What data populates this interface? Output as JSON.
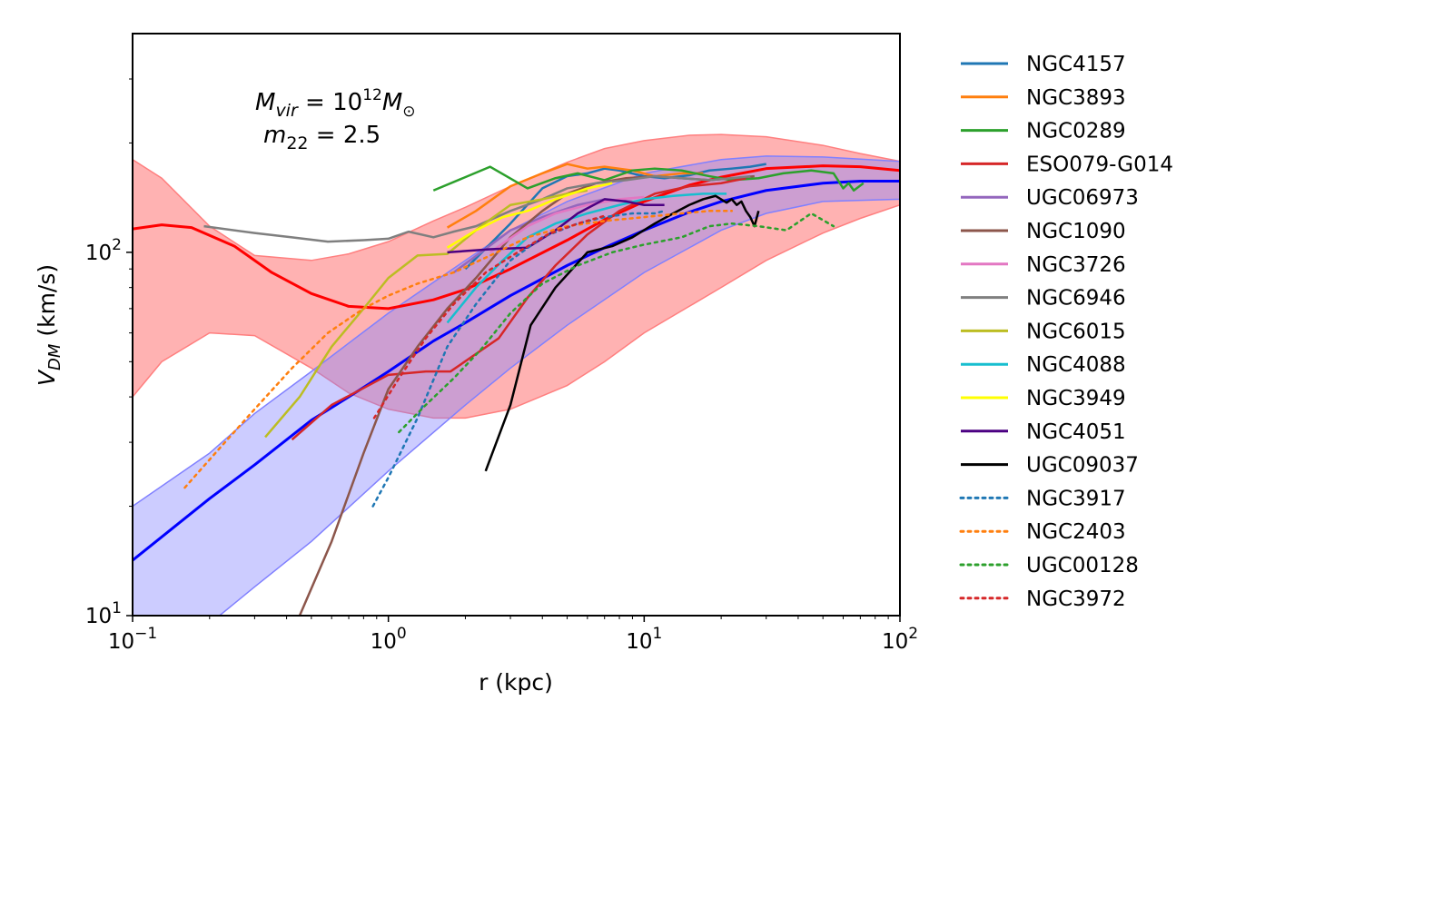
{
  "chart_data": {
    "type": "line",
    "xscale": "log",
    "yscale": "log",
    "xlim": [
      0.1,
      100
    ],
    "ylim": [
      10,
      400
    ],
    "xlabel": "r (kpc)",
    "ylabel_main": "V",
    "ylabel_sub": "DM",
    "ylabel_unit": " (km/s)",
    "annotation_line1": "M_vir = 10^12 M_sun",
    "annotation_line2": "m_22 = 2.5",
    "legend_position": "outside-right",
    "x_ticks": [
      {
        "value": 0.1,
        "base": "10",
        "exp": "−1"
      },
      {
        "value": 1,
        "base": "10",
        "exp": "0"
      },
      {
        "value": 10,
        "base": "10",
        "exp": "1"
      },
      {
        "value": 100,
        "base": "10",
        "exp": "2"
      }
    ],
    "y_ticks": [
      {
        "value": 10,
        "base": "10",
        "exp": "1"
      },
      {
        "value": 100,
        "base": "10",
        "exp": "2"
      }
    ],
    "bands": [
      {
        "name": "",
        "color": "#ff7f7f",
        "opacity": 0.6,
        "x": [
          0.1,
          0.13,
          0.2,
          0.3,
          0.5,
          0.7,
          1.0,
          1.5,
          2.0,
          3.0,
          5.0,
          7.0,
          10,
          15,
          20,
          30,
          50,
          70,
          100
        ],
        "upper": [
          180,
          160,
          118,
          98,
          95,
          99,
          107,
          122,
          133,
          152,
          177,
          193,
          203,
          210,
          211,
          208,
          197,
          187,
          178
        ],
        "lower": [
          40,
          50,
          60,
          59,
          48,
          41,
          37,
          35,
          35,
          37,
          43,
          50,
          60,
          71,
          80,
          95,
          113,
          124,
          135
        ]
      },
      {
        "name": "",
        "color": "#8080ff",
        "opacity": 0.4,
        "x": [
          0.1,
          0.2,
          0.3,
          0.5,
          1.0,
          2.0,
          3.0,
          5.0,
          10,
          20,
          30,
          50,
          100
        ],
        "upper": [
          20,
          28,
          36,
          47,
          68,
          95,
          115,
          138,
          165,
          180,
          184,
          183,
          178
        ],
        "lower": [
          6.5,
          9.5,
          12,
          16,
          25,
          38,
          48,
          63,
          88,
          115,
          128,
          138,
          140
        ]
      }
    ],
    "model_curves": [
      {
        "name": "",
        "color": "#ff0000",
        "width": 3,
        "x": [
          0.1,
          0.13,
          0.17,
          0.25,
          0.35,
          0.5,
          0.7,
          1.0,
          1.5,
          2.0,
          3.0,
          5.0,
          7.0,
          10,
          15,
          20,
          30,
          50,
          70,
          100
        ],
        "y": [
          116,
          119,
          117,
          104,
          88,
          77,
          71,
          70,
          74,
          79,
          90,
          108,
          123,
          138,
          153,
          161,
          170,
          173,
          172,
          168
        ]
      },
      {
        "name": "",
        "color": "#0000ff",
        "width": 3,
        "x": [
          0.1,
          0.2,
          0.3,
          0.5,
          0.7,
          1.0,
          1.5,
          2.0,
          3.0,
          5.0,
          7.0,
          10,
          15,
          20,
          30,
          50,
          70,
          100
        ],
        "y": [
          14.2,
          21,
          26,
          34.5,
          40,
          47,
          57,
          64,
          76,
          92,
          103,
          115,
          129,
          138,
          148,
          155,
          157,
          157
        ]
      }
    ],
    "series": [
      {
        "name": "NGC4157",
        "color": "#1f77b4",
        "style": "solid",
        "x": [
          2.0,
          3.0,
          4.0,
          5.0,
          6.0,
          7.0,
          8.0,
          10,
          12,
          15,
          18,
          22,
          26,
          30
        ],
        "y": [
          90,
          120,
          150,
          162,
          165,
          170,
          168,
          162,
          160,
          163,
          168,
          170,
          172,
          175
        ]
      },
      {
        "name": "NGC3893",
        "color": "#ff7f0e",
        "style": "solid",
        "x": [
          1.7,
          2.2,
          3.0,
          4.0,
          5.0,
          6.0,
          7.0,
          9.0,
          11,
          14,
          17
        ],
        "y": [
          117,
          130,
          152,
          165,
          175,
          170,
          172,
          168,
          162,
          165,
          165
        ]
      },
      {
        "name": "NGC0289",
        "color": "#2ca02c",
        "style": "solid",
        "x": [
          1.5,
          2.5,
          3.5,
          4.5,
          5.5,
          7.0,
          9.0,
          11,
          14,
          18,
          22,
          28,
          35,
          45,
          55,
          60,
          63,
          66,
          72
        ],
        "y": [
          148,
          172,
          150,
          160,
          165,
          158,
          168,
          170,
          168,
          162,
          158,
          160,
          165,
          168,
          165,
          150,
          155,
          148,
          155
        ]
      },
      {
        "name": "ESO079-G014",
        "color": "#d62728",
        "style": "solid",
        "x": [
          0.42,
          0.6,
          1.0,
          1.4,
          1.75,
          2.7,
          3.5,
          4.5,
          6.0,
          8.0,
          11,
          15,
          20,
          25
        ],
        "y": [
          30.5,
          38,
          46,
          47,
          47,
          58,
          75,
          92,
          112,
          130,
          145,
          152,
          155,
          160
        ]
      },
      {
        "name": "UGC06973",
        "color": "#9467bd",
        "style": "solid",
        "x": [
          1.8,
          2.3,
          3.0,
          4.0,
          5.5,
          7.0,
          9.0
        ],
        "y": [
          88,
          100,
          115,
          125,
          135,
          140,
          138
        ]
      },
      {
        "name": "NGC1090",
        "color": "#8c564b",
        "style": "solid",
        "x": [
          0.45,
          0.6,
          0.8,
          1.0,
          1.3,
          1.7,
          2.2,
          3.0,
          4.0,
          5.0,
          6.5,
          8.5,
          11,
          14,
          18,
          22,
          27
        ],
        "y": [
          10,
          16,
          28,
          42,
          55,
          70,
          85,
          110,
          130,
          145,
          155,
          160,
          162,
          160,
          158,
          160,
          162
        ]
      },
      {
        "name": "NGC3726",
        "color": "#e377c2",
        "style": "solid",
        "x": [
          2.5,
          3.5,
          4.5,
          6.0,
          8.0,
          10
        ],
        "y": [
          100,
          118,
          128,
          135,
          140,
          142
        ]
      },
      {
        "name": "NGC6946",
        "color": "#7f7f7f",
        "style": "solid",
        "x": [
          0.19,
          0.3,
          0.42,
          0.58,
          0.8,
          1.0,
          1.2,
          1.5,
          1.8,
          2.2,
          3.0,
          4.0,
          5.0,
          6.5,
          8.5,
          11,
          14,
          18,
          22,
          26
        ],
        "y": [
          118,
          113,
          110,
          107,
          108,
          109,
          114,
          110,
          114,
          118,
          130,
          140,
          150,
          155,
          158,
          162,
          160,
          158,
          160,
          162
        ]
      },
      {
        "name": "NGC6015",
        "color": "#bcbd22",
        "style": "solid",
        "x": [
          0.33,
          0.45,
          0.6,
          0.8,
          1.0,
          1.3,
          1.7,
          2.3,
          3.0,
          4.0,
          5.0,
          6.0
        ],
        "y": [
          31,
          40,
          55,
          70,
          85,
          98,
          99,
          118,
          135,
          140,
          145,
          148
        ]
      },
      {
        "name": "NGC4088",
        "color": "#17becf",
        "style": "solid",
        "x": [
          1.7,
          2.2,
          2.8,
          3.5,
          4.5,
          6.0,
          8.0,
          10,
          13,
          17,
          21
        ],
        "y": [
          64,
          80,
          95,
          110,
          120,
          128,
          135,
          140,
          143,
          145,
          145
        ]
      },
      {
        "name": "NGC3949",
        "color": "#ffff00",
        "style": "solid",
        "x": [
          1.7,
          2.2,
          2.8,
          3.5,
          4.5,
          6.0,
          7.5
        ],
        "y": [
          103,
          115,
          125,
          130,
          140,
          150,
          155
        ]
      },
      {
        "name": "NGC4051",
        "color": "#4b0082",
        "style": "solid",
        "x": [
          1.7,
          2.5,
          3.5,
          4.5,
          5.5,
          7.0,
          8.5,
          10,
          12
        ],
        "y": [
          100,
          102,
          103,
          115,
          128,
          140,
          138,
          135,
          135
        ]
      },
      {
        "name": "UGC09037",
        "color": "#000000",
        "style": "solid",
        "x": [
          2.4,
          3.0,
          3.6,
          4.5,
          6.0,
          7.5,
          9.0,
          11,
          13,
          15,
          17,
          19,
          21,
          22,
          23,
          24,
          25,
          26,
          27,
          28
        ],
        "y": [
          25,
          38,
          63,
          80,
          100,
          104,
          110,
          120,
          128,
          135,
          140,
          143,
          137,
          140,
          135,
          138,
          130,
          125,
          118,
          130
        ]
      },
      {
        "name": "NGC3917",
        "color": "#1f77b4",
        "style": "dotted",
        "x": [
          0.87,
          1.0,
          1.3,
          1.7,
          2.2,
          3.0,
          4.0,
          5.5,
          7.0,
          9.0,
          11,
          12
        ],
        "y": [
          20,
          24,
          35,
          55,
          72,
          95,
          110,
          120,
          125,
          128,
          128,
          130
        ]
      },
      {
        "name": "NGC2403",
        "color": "#ff7f0e",
        "style": "dotted",
        "x": [
          0.16,
          0.22,
          0.3,
          0.42,
          0.58,
          0.8,
          1.0,
          1.3,
          1.8,
          2.5,
          3.5,
          5.0,
          7.0,
          10,
          14,
          18,
          22
        ],
        "y": [
          22.5,
          29,
          37,
          48,
          60,
          70,
          76,
          82,
          88,
          98,
          110,
          118,
          122,
          125,
          128,
          130,
          130
        ]
      },
      {
        "name": "UGC00128",
        "color": "#2ca02c",
        "style": "dotted",
        "x": [
          1.1,
          1.4,
          1.8,
          2.3,
          3.0,
          4.0,
          5.5,
          7.5,
          10,
          14,
          18,
          22,
          28,
          36,
          45,
          55
        ],
        "y": [
          32,
          38,
          45,
          54,
          68,
          82,
          92,
          100,
          105,
          110,
          118,
          120,
          118,
          115,
          128,
          118
        ]
      },
      {
        "name": "NGC3972",
        "color": "#d62728",
        "style": "dotted",
        "x": [
          0.88,
          1.1,
          1.4,
          1.8,
          2.4,
          3.2,
          4.2,
          5.5,
          7.0
        ],
        "y": [
          35,
          45,
          58,
          72,
          88,
          100,
          112,
          120,
          126
        ]
      }
    ]
  }
}
